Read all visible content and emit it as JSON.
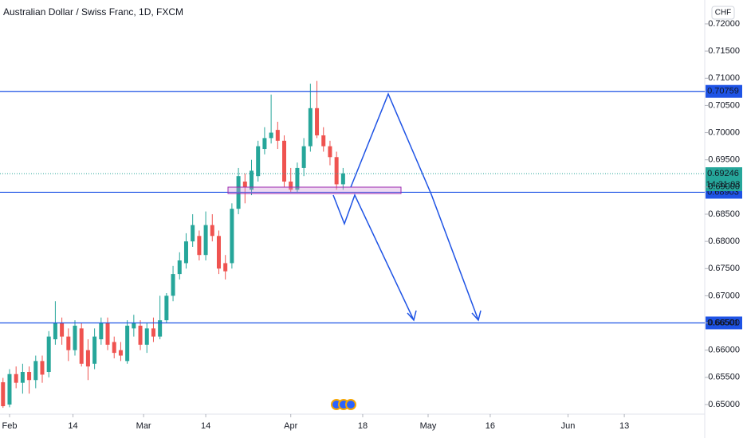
{
  "chart_data": {
    "type": "candlestick",
    "title": "Australian Dollar / Swiss Franc, 1D, FXCM",
    "currency": "CHF",
    "up_color": "#26a69a",
    "down_color": "#ef5350",
    "line_color": "#1e53e5",
    "x": [
      -1,
      0,
      1,
      2,
      3,
      4,
      5,
      6,
      7,
      8,
      9,
      10,
      11,
      12,
      13,
      14,
      15,
      16,
      17,
      18,
      19,
      20,
      21,
      22,
      23,
      24,
      25,
      26,
      27,
      28,
      29,
      30,
      31,
      32,
      33,
      34,
      35,
      36,
      37,
      38,
      39,
      40,
      41,
      42,
      43,
      44,
      45,
      46,
      47,
      48,
      49,
      50,
      51
    ],
    "open": [
      0.6541,
      0.65,
      0.6556,
      0.654,
      0.656,
      0.6545,
      0.658,
      0.656,
      0.662,
      0.665,
      0.6625,
      0.66,
      0.664,
      0.66,
      0.6575,
      0.662,
      0.665,
      0.6615,
      0.66,
      0.658,
      0.664,
      0.6645,
      0.661,
      0.664,
      0.6625,
      0.6655,
      0.67,
      0.674,
      0.676,
      0.68,
      0.681,
      0.6775,
      0.683,
      0.681,
      0.676,
      0.676,
      0.686,
      0.691,
      0.6895,
      0.692,
      0.697,
      0.699,
      0.7005,
      0.6985,
      0.691,
      0.6895,
      0.6935,
      0.6975,
      0.7045,
      0.6995,
      0.6975,
      0.6955,
      0.6905
    ],
    "high": [
      0.6549,
      0.6565,
      0.657,
      0.6575,
      0.657,
      0.659,
      0.659,
      0.6635,
      0.669,
      0.666,
      0.664,
      0.6655,
      0.665,
      0.662,
      0.664,
      0.666,
      0.666,
      0.6625,
      0.6615,
      0.6655,
      0.6665,
      0.6655,
      0.665,
      0.666,
      0.67,
      0.6705,
      0.6755,
      0.678,
      0.6815,
      0.685,
      0.682,
      0.6855,
      0.685,
      0.682,
      0.6775,
      0.687,
      0.6935,
      0.6925,
      0.695,
      0.6985,
      0.701,
      0.707,
      0.702,
      0.6995,
      0.6935,
      0.6945,
      0.699,
      0.709,
      0.7095,
      0.701,
      0.6985,
      0.6965,
      0.6935
    ],
    "low": [
      0.6494,
      0.6495,
      0.653,
      0.652,
      0.652,
      0.653,
      0.654,
      0.655,
      0.661,
      0.661,
      0.658,
      0.659,
      0.657,
      0.6545,
      0.6565,
      0.661,
      0.66,
      0.6585,
      0.658,
      0.6575,
      0.6625,
      0.66,
      0.6595,
      0.6615,
      0.662,
      0.665,
      0.669,
      0.673,
      0.675,
      0.679,
      0.6765,
      0.6765,
      0.68,
      0.674,
      0.673,
      0.675,
      0.685,
      0.687,
      0.6885,
      0.691,
      0.696,
      0.698,
      0.697,
      0.69,
      0.689,
      0.689,
      0.692,
      0.6965,
      0.699,
      0.6965,
      0.694,
      0.6895,
      0.6895
    ],
    "close": [
      0.6497,
      0.6556,
      0.654,
      0.656,
      0.6545,
      0.658,
      0.6555,
      0.6625,
      0.665,
      0.6625,
      0.66,
      0.6645,
      0.6575,
      0.657,
      0.6625,
      0.665,
      0.661,
      0.6595,
      0.659,
      0.6645,
      0.665,
      0.661,
      0.664,
      0.6625,
      0.6655,
      0.67,
      0.674,
      0.6765,
      0.68,
      0.683,
      0.6775,
      0.683,
      0.681,
      0.675,
      0.6745,
      0.686,
      0.692,
      0.69,
      0.693,
      0.6975,
      0.699,
      0.7,
      0.6985,
      0.691,
      0.6895,
      0.6935,
      0.6975,
      0.7045,
      0.6995,
      0.6975,
      0.6955,
      0.6905,
      0.6925
    ],
    "xlim": [
      -1.46,
      106.3
    ],
    "xticks": [
      {
        "value": 0,
        "label": "Feb"
      },
      {
        "value": 9.7,
        "label": "14"
      },
      {
        "value": 20.5,
        "label": "Mar"
      },
      {
        "value": 30,
        "label": "14"
      },
      {
        "value": 43,
        "label": "Apr"
      },
      {
        "value": 54,
        "label": "18"
      },
      {
        "value": 64,
        "label": "May"
      },
      {
        "value": 73.5,
        "label": "16"
      },
      {
        "value": 85.4,
        "label": "Jun"
      },
      {
        "value": 94,
        "label": "13"
      }
    ],
    "ylim": [
      0.64824,
      0.72439
    ],
    "yticks": [
      {
        "value": 0.72,
        "label": "0.72000"
      },
      {
        "value": 0.715,
        "label": "0.71500"
      },
      {
        "value": 0.71,
        "label": "0.71000"
      },
      {
        "value": 0.705,
        "label": "0.70500"
      },
      {
        "value": 0.7,
        "label": "0.70000"
      },
      {
        "value": 0.695,
        "label": "0.69500"
      },
      {
        "value": 0.69,
        "label": "0.69000"
      },
      {
        "value": 0.685,
        "label": "0.68500"
      },
      {
        "value": 0.68,
        "label": "0.68000"
      },
      {
        "value": 0.675,
        "label": "0.67500"
      },
      {
        "value": 0.67,
        "label": "0.67000"
      },
      {
        "value": 0.665,
        "label": "0.66500"
      },
      {
        "value": 0.66,
        "label": "0.66000"
      },
      {
        "value": 0.655,
        "label": "0.65500"
      },
      {
        "value": 0.65,
        "label": "0.65000"
      }
    ],
    "hlines": [
      0.70759,
      0.68903,
      0.66501
    ],
    "current_price": 0.69246,
    "countdown": "14:31:03"
  }
}
